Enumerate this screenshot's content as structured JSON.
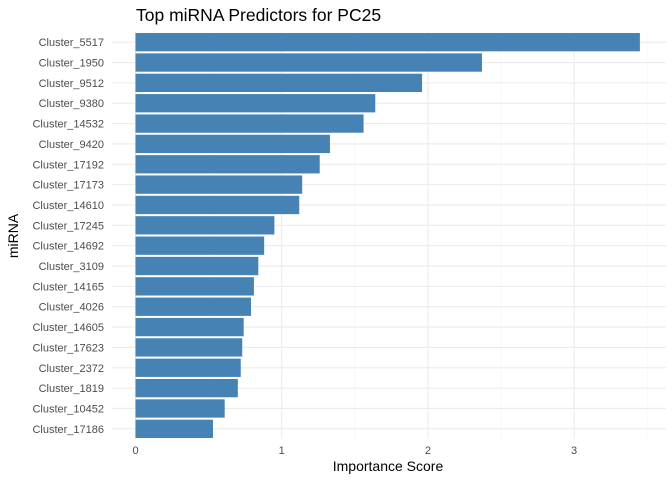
{
  "chart_data": {
    "type": "bar",
    "orientation": "horizontal",
    "title": "Top miRNA Predictors for PC25",
    "xlabel": "Importance Score",
    "ylabel": "miRNA",
    "xlim": [
      0,
      3.5
    ],
    "x_ticks": [
      "0",
      "1",
      "2",
      "3"
    ],
    "grid": true,
    "bar_color": "#4682B4",
    "categories": [
      "Cluster_5517",
      "Cluster_1950",
      "Cluster_9512",
      "Cluster_9380",
      "Cluster_14532",
      "Cluster_9420",
      "Cluster_17192",
      "Cluster_17173",
      "Cluster_14610",
      "Cluster_17245",
      "Cluster_14692",
      "Cluster_3109",
      "Cluster_14165",
      "Cluster_4026",
      "Cluster_14605",
      "Cluster_17623",
      "Cluster_2372",
      "Cluster_1819",
      "Cluster_10452",
      "Cluster_17186"
    ],
    "values": [
      3.45,
      2.37,
      1.96,
      1.64,
      1.56,
      1.33,
      1.26,
      1.14,
      1.12,
      0.95,
      0.88,
      0.84,
      0.81,
      0.79,
      0.74,
      0.73,
      0.72,
      0.7,
      0.61,
      0.53
    ]
  }
}
